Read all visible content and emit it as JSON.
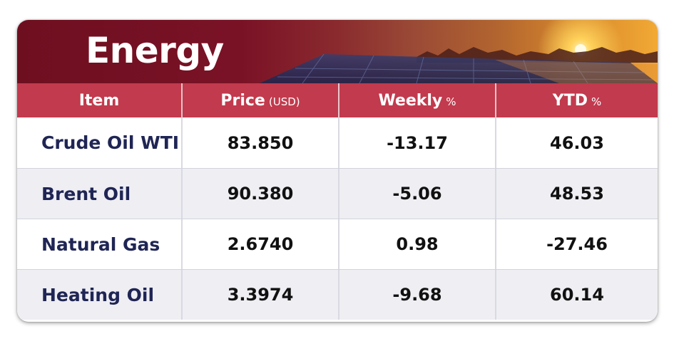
{
  "banner": {
    "title": "Energy"
  },
  "table": {
    "headers": [
      {
        "label": "Item",
        "unit": ""
      },
      {
        "label": "Price",
        "unit": "(USD)"
      },
      {
        "label": "Weekly",
        "unit": "%"
      },
      {
        "label": "YTD",
        "unit": "%"
      }
    ],
    "rows": [
      {
        "item": "Crude Oil WTI",
        "price": "83.850",
        "weekly": "-13.17",
        "ytd": "46.03"
      },
      {
        "item": "Brent Oil",
        "price": "90.380",
        "weekly": "-5.06",
        "ytd": "48.53"
      },
      {
        "item": "Natural Gas",
        "price": "2.6740",
        "weekly": "0.98",
        "ytd": "-27.46"
      },
      {
        "item": "Heating Oil",
        "price": "3.3974",
        "weekly": "-9.68",
        "ytd": "60.14"
      }
    ]
  },
  "colors": {
    "banner_dark": "#6e0f20",
    "header_red": "#c23a4d",
    "item_text": "#1f2554",
    "value_text": "#111111",
    "row_alt": "#eeeef3"
  }
}
